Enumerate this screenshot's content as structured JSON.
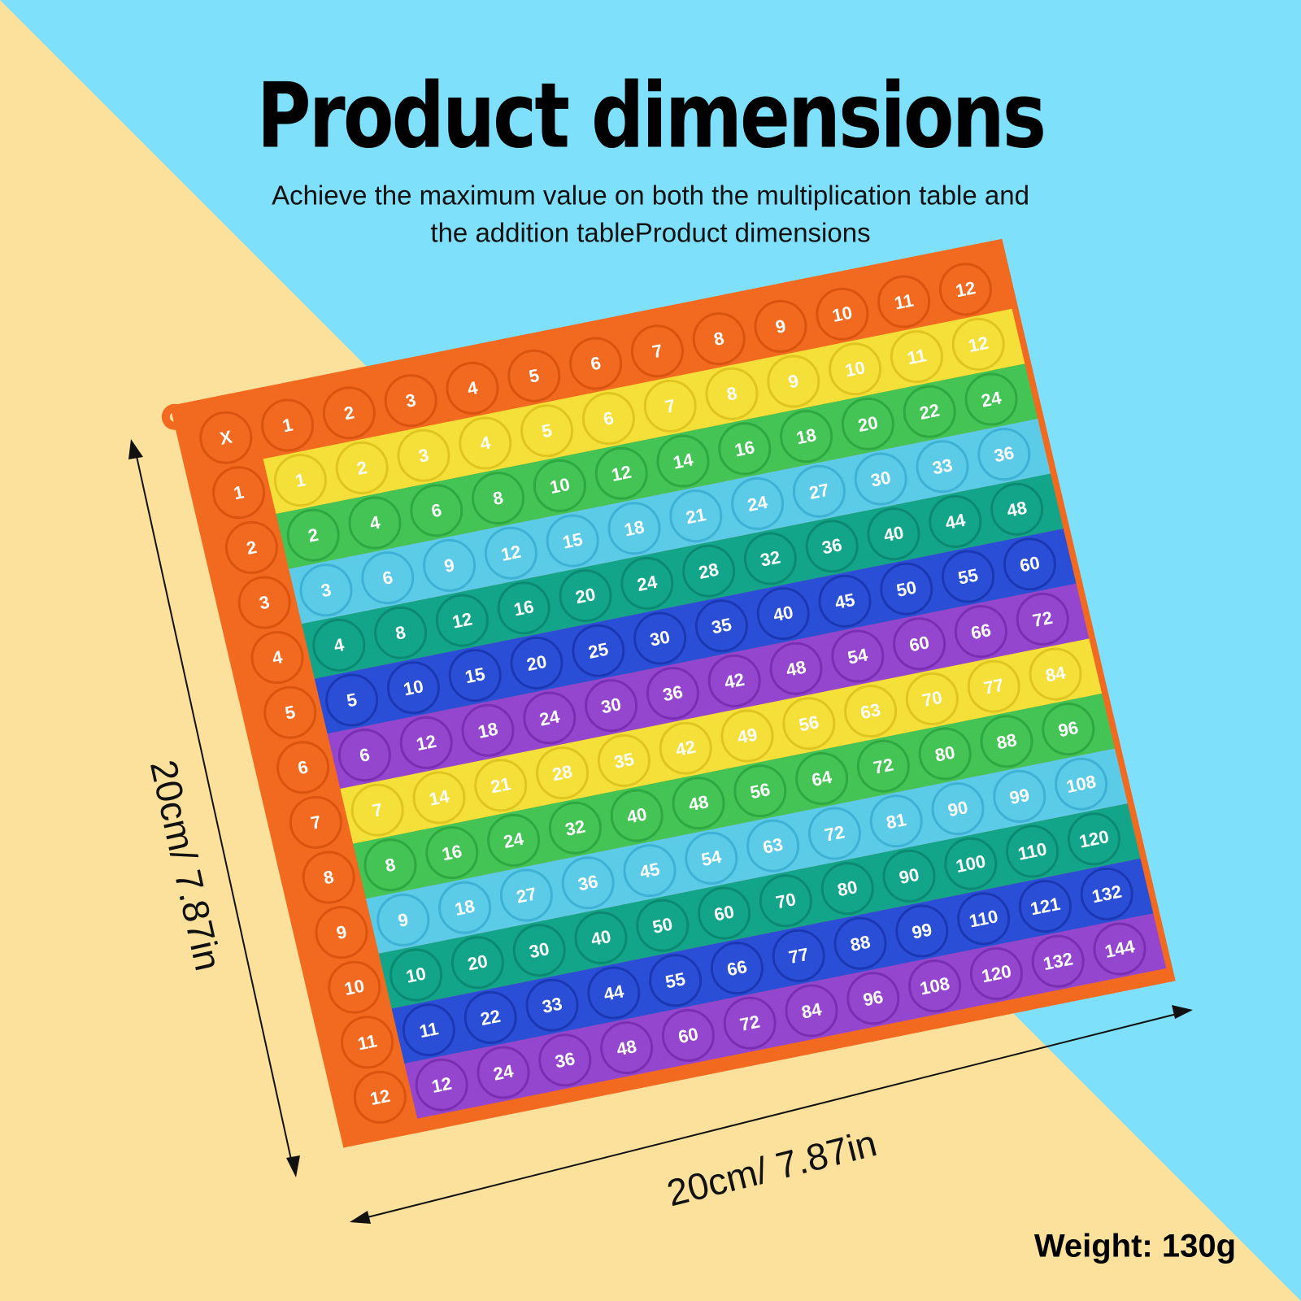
{
  "title": "Product dimensions",
  "subtitle": [
    "Achieve the maximum value on both the multiplication table and",
    "the addition tableProduct dimensions"
  ],
  "board": {
    "header": [
      "X",
      "1",
      "2",
      "3",
      "4",
      "5",
      "6",
      "7",
      "8",
      "9",
      "10",
      "11",
      "12"
    ],
    "rows": [
      [
        "1",
        "1",
        "2",
        "3",
        "4",
        "5",
        "6",
        "7",
        "8",
        "9",
        "10",
        "11",
        "12"
      ],
      [
        "2",
        "2",
        "4",
        "6",
        "8",
        "10",
        "12",
        "14",
        "16",
        "18",
        "20",
        "22",
        "24"
      ],
      [
        "3",
        "3",
        "6",
        "9",
        "12",
        "15",
        "18",
        "21",
        "24",
        "27",
        "30",
        "33",
        "36"
      ],
      [
        "4",
        "4",
        "8",
        "12",
        "16",
        "20",
        "24",
        "28",
        "32",
        "36",
        "40",
        "44",
        "48"
      ],
      [
        "5",
        "5",
        "10",
        "15",
        "20",
        "25",
        "30",
        "35",
        "40",
        "45",
        "50",
        "55",
        "60"
      ],
      [
        "6",
        "6",
        "12",
        "18",
        "24",
        "30",
        "36",
        "42",
        "48",
        "54",
        "60",
        "66",
        "72"
      ],
      [
        "7",
        "7",
        "14",
        "21",
        "28",
        "35",
        "42",
        "49",
        "56",
        "63",
        "70",
        "77",
        "84"
      ],
      [
        "8",
        "8",
        "16",
        "24",
        "32",
        "40",
        "48",
        "56",
        "64",
        "72",
        "80",
        "88",
        "96"
      ],
      [
        "9",
        "9",
        "18",
        "27",
        "36",
        "45",
        "54",
        "63",
        "72",
        "81",
        "90",
        "99",
        "108"
      ],
      [
        "10",
        "10",
        "20",
        "30",
        "40",
        "50",
        "60",
        "70",
        "80",
        "90",
        "100",
        "110",
        "120"
      ],
      [
        "11",
        "11",
        "22",
        "33",
        "44",
        "55",
        "66",
        "77",
        "88",
        "99",
        "110",
        "121",
        "132"
      ],
      [
        "12",
        "12",
        "24",
        "36",
        "48",
        "60",
        "72",
        "84",
        "96",
        "108",
        "120",
        "132",
        "144"
      ]
    ]
  },
  "height_label": "20cm/ 7.87in",
  "width_label": "20cm/ 7.87in",
  "weight": "Weight: 130g"
}
